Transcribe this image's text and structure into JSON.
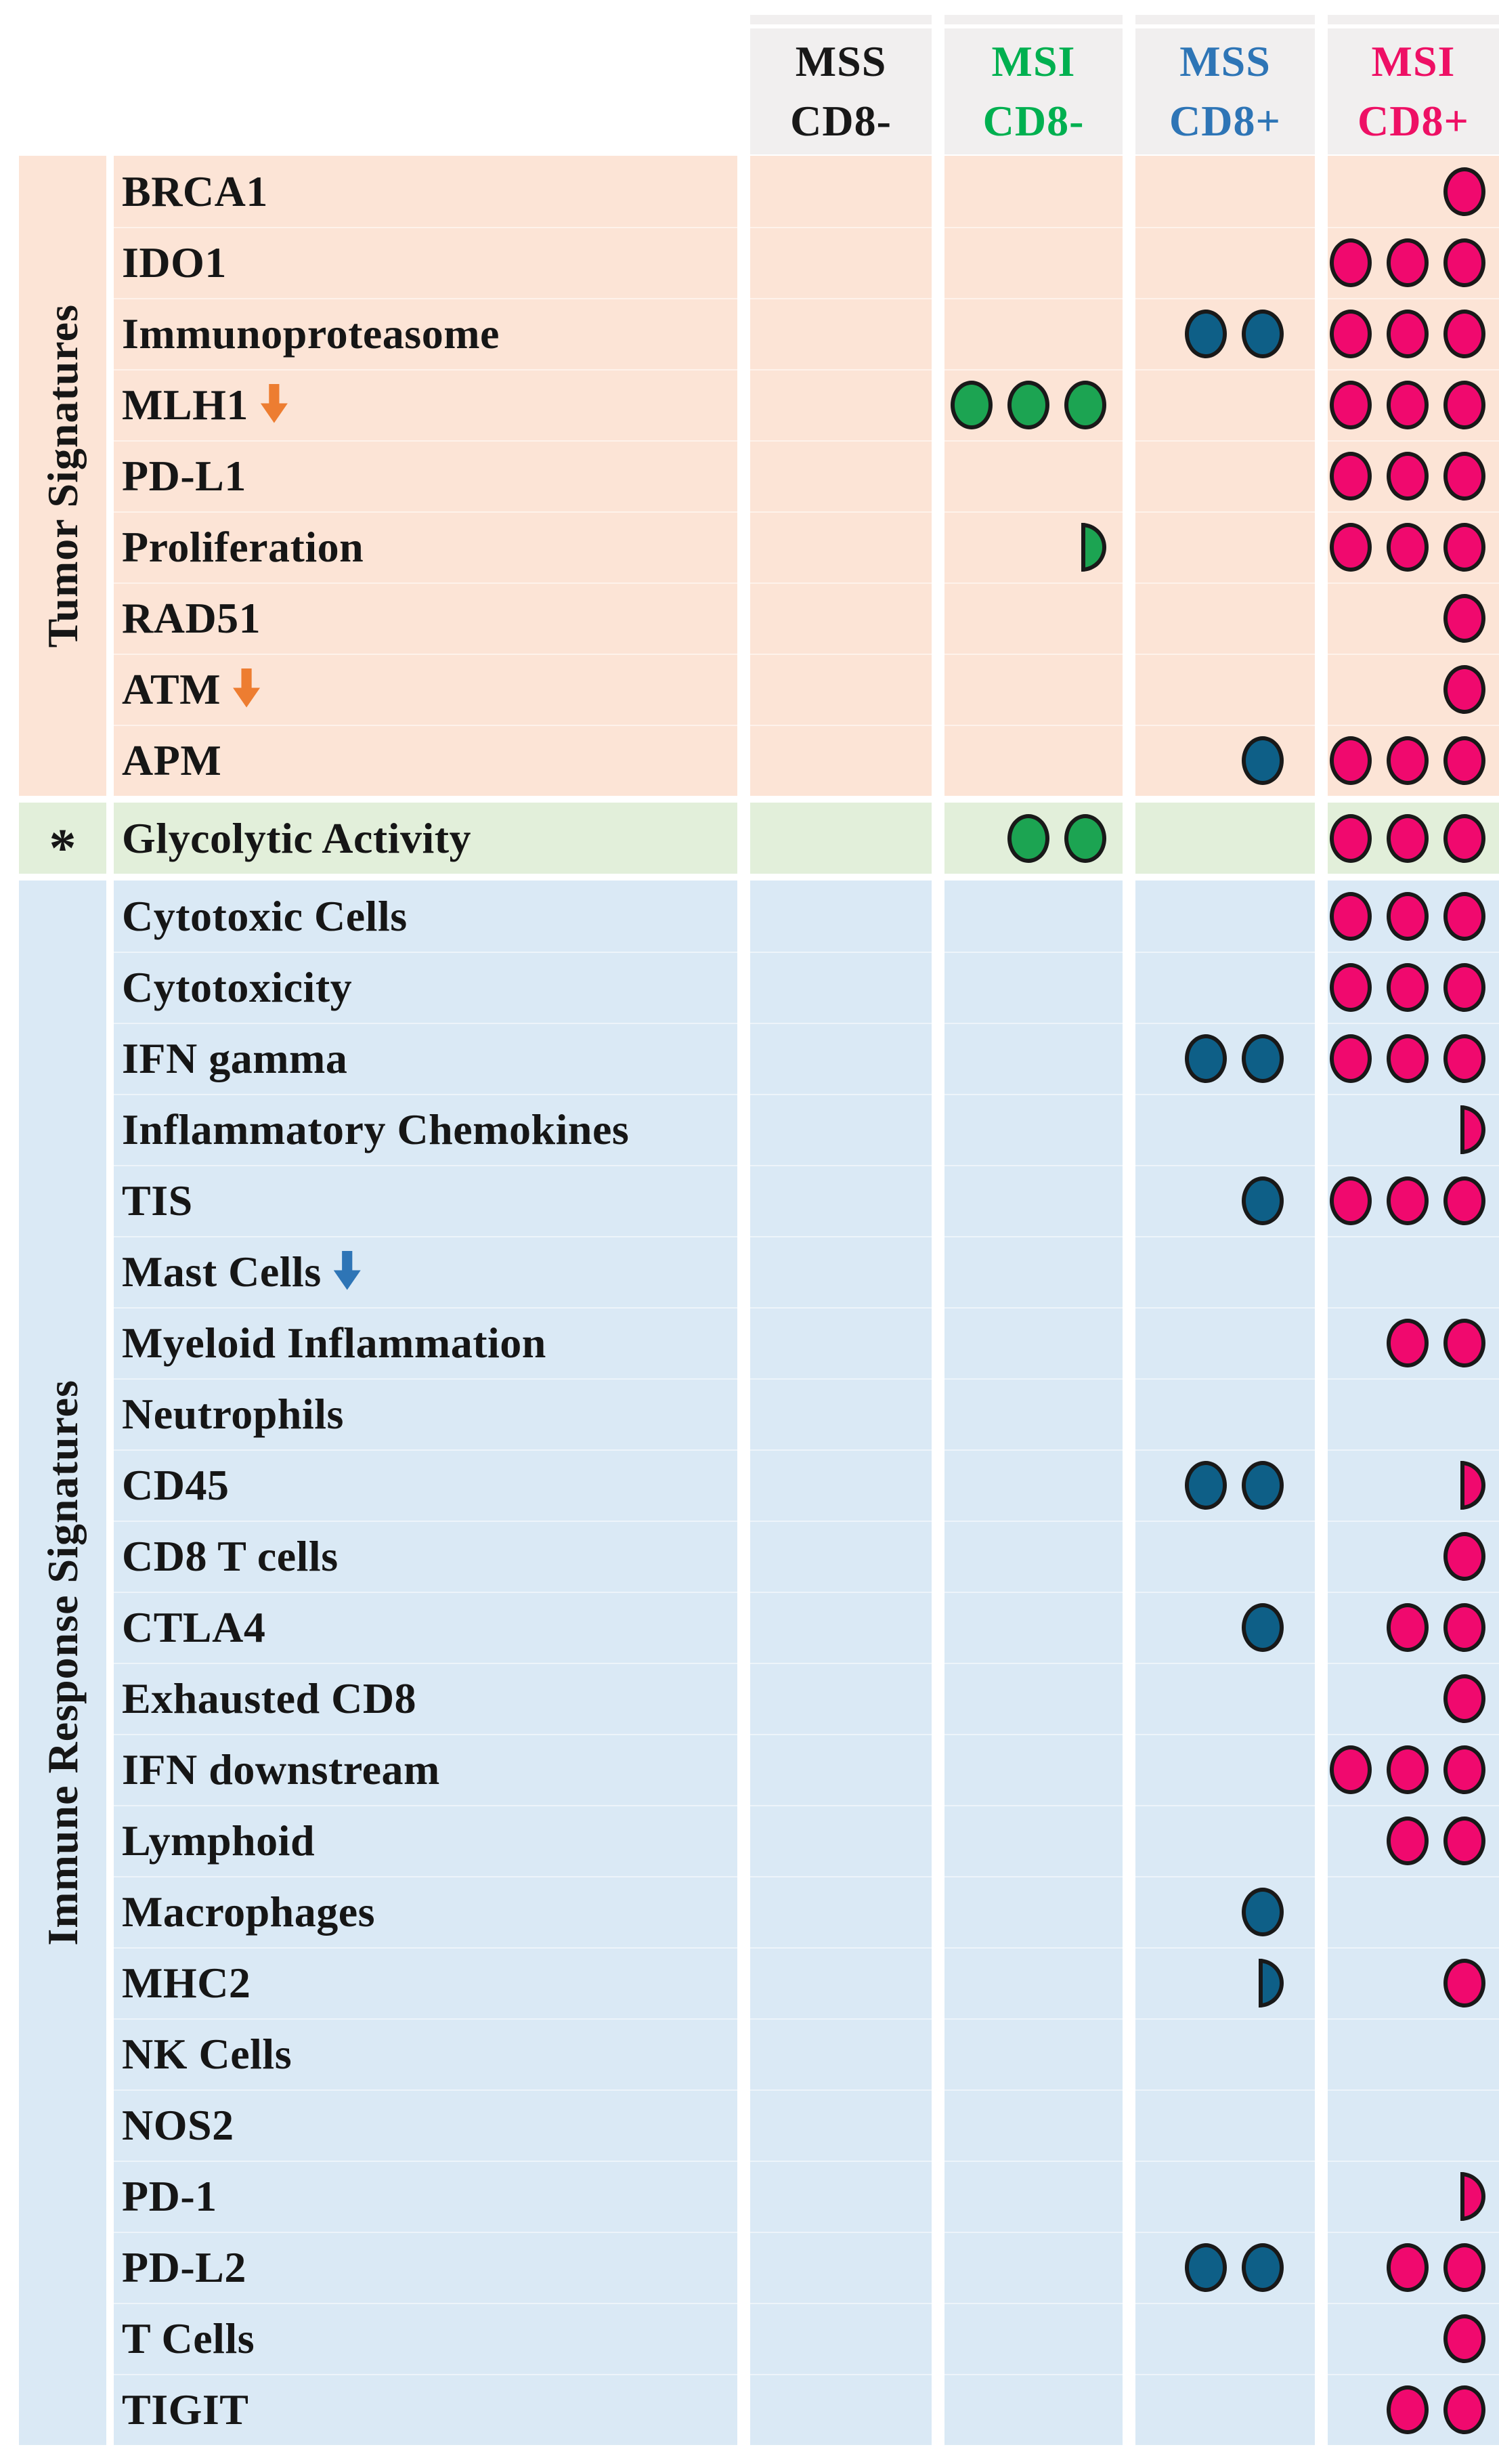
{
  "chart_data": {
    "type": "table",
    "description_note": "",
    "columns": [
      {
        "key": "mss_cd8neg",
        "line1": "MSS",
        "line2": "CD8-",
        "color": "#181818"
      },
      {
        "key": "msi_cd8neg",
        "line1": "MSI",
        "line2": "CD8-",
        "color": "#00B050"
      },
      {
        "key": "mss_cd8pos",
        "line1": "MSS",
        "line2": "CD8+",
        "color": "#2E75B6"
      },
      {
        "key": "msi_cd8pos",
        "line1": "MSI",
        "line2": "CD8+",
        "color": "#EE1065"
      }
    ],
    "groups": [
      {
        "label": "Tumor Signatures",
        "marker": "",
        "bg": "#FCE4D6"
      },
      {
        "label": "",
        "marker": "*",
        "bg": "#E2EFDA"
      },
      {
        "label": "Immune Response Signatures",
        "marker": "",
        "bg": "#DAE9F5"
      }
    ],
    "dot_colors": {
      "c2": "#1CA452",
      "c3": "#0E5F87",
      "c4": "#F0096E"
    },
    "arrow_colors": {
      "orange": "#ED7D31",
      "blue": "#2E75B6"
    },
    "rows": [
      {
        "label": "BRCA1",
        "group": 0,
        "arrow": null,
        "dots": [
          0,
          0,
          0,
          1
        ]
      },
      {
        "label": "IDO1",
        "group": 0,
        "arrow": null,
        "dots": [
          0,
          0,
          0,
          3
        ]
      },
      {
        "label": "Immunoproteasome",
        "group": 0,
        "arrow": null,
        "dots": [
          0,
          0,
          2,
          3
        ]
      },
      {
        "label": "MLH1",
        "group": 0,
        "arrow": "orange",
        "dots": [
          0,
          3,
          0,
          3
        ]
      },
      {
        "label": "PD-L1",
        "group": 0,
        "arrow": null,
        "dots": [
          0,
          0,
          0,
          3
        ]
      },
      {
        "label": "Proliferation",
        "group": 0,
        "arrow": null,
        "dots": [
          0,
          0.5,
          0,
          3
        ]
      },
      {
        "label": "RAD51",
        "group": 0,
        "arrow": null,
        "dots": [
          0,
          0,
          0,
          1
        ]
      },
      {
        "label": "ATM",
        "group": 0,
        "arrow": "orange",
        "dots": [
          0,
          0,
          0,
          1
        ]
      },
      {
        "label": "APM",
        "group": 0,
        "arrow": null,
        "dots": [
          0,
          0,
          1,
          3
        ]
      },
      {
        "label": "Glycolytic Activity",
        "group": 1,
        "arrow": null,
        "dots": [
          0,
          2,
          0,
          3
        ]
      },
      {
        "label": "Cytotoxic Cells",
        "group": 2,
        "arrow": null,
        "dots": [
          0,
          0,
          0,
          3
        ]
      },
      {
        "label": "Cytotoxicity",
        "group": 2,
        "arrow": null,
        "dots": [
          0,
          0,
          0,
          3
        ]
      },
      {
        "label": "IFN gamma",
        "group": 2,
        "arrow": null,
        "dots": [
          0,
          0,
          2,
          3
        ]
      },
      {
        "label": "Inflammatory Chemokines",
        "group": 2,
        "arrow": null,
        "dots": [
          0,
          0,
          0,
          0.5
        ]
      },
      {
        "label": "TIS",
        "group": 2,
        "arrow": null,
        "dots": [
          0,
          0,
          1,
          3
        ]
      },
      {
        "label": "Mast Cells",
        "group": 2,
        "arrow": "blue",
        "dots": [
          0,
          0,
          0,
          0
        ]
      },
      {
        "label": "Myeloid Inflammation",
        "group": 2,
        "arrow": null,
        "dots": [
          0,
          0,
          0,
          2
        ]
      },
      {
        "label": "Neutrophils",
        "group": 2,
        "arrow": null,
        "dots": [
          0,
          0,
          0,
          0
        ]
      },
      {
        "label": "CD45",
        "group": 2,
        "arrow": null,
        "dots": [
          0,
          0,
          2,
          0.5
        ]
      },
      {
        "label": "CD8 T cells",
        "group": 2,
        "arrow": null,
        "dots": [
          0,
          0,
          0,
          1
        ]
      },
      {
        "label": "CTLA4",
        "group": 2,
        "arrow": null,
        "dots": [
          0,
          0,
          1,
          2
        ]
      },
      {
        "label": "Exhausted CD8",
        "group": 2,
        "arrow": null,
        "dots": [
          0,
          0,
          0,
          1
        ]
      },
      {
        "label": "IFN downstream",
        "group": 2,
        "arrow": null,
        "dots": [
          0,
          0,
          0,
          3
        ]
      },
      {
        "label": "Lymphoid",
        "group": 2,
        "arrow": null,
        "dots": [
          0,
          0,
          0,
          2
        ]
      },
      {
        "label": "Macrophages",
        "group": 2,
        "arrow": null,
        "dots": [
          0,
          0,
          1,
          0
        ]
      },
      {
        "label": "MHC2",
        "group": 2,
        "arrow": null,
        "dots": [
          0,
          0,
          0.5,
          1
        ]
      },
      {
        "label": "NK Cells",
        "group": 2,
        "arrow": null,
        "dots": [
          0,
          0,
          0,
          0
        ]
      },
      {
        "label": "NOS2",
        "group": 2,
        "arrow": null,
        "dots": [
          0,
          0,
          0,
          0
        ]
      },
      {
        "label": "PD-1",
        "group": 2,
        "arrow": null,
        "dots": [
          0,
          0,
          0,
          0.5
        ]
      },
      {
        "label": "PD-L2",
        "group": 2,
        "arrow": null,
        "dots": [
          0,
          0,
          2,
          2
        ]
      },
      {
        "label": "T Cells",
        "group": 2,
        "arrow": null,
        "dots": [
          0,
          0,
          0,
          1
        ]
      },
      {
        "label": "TIGIT",
        "group": 2,
        "arrow": null,
        "dots": [
          0,
          0,
          0,
          2
        ]
      }
    ]
  }
}
